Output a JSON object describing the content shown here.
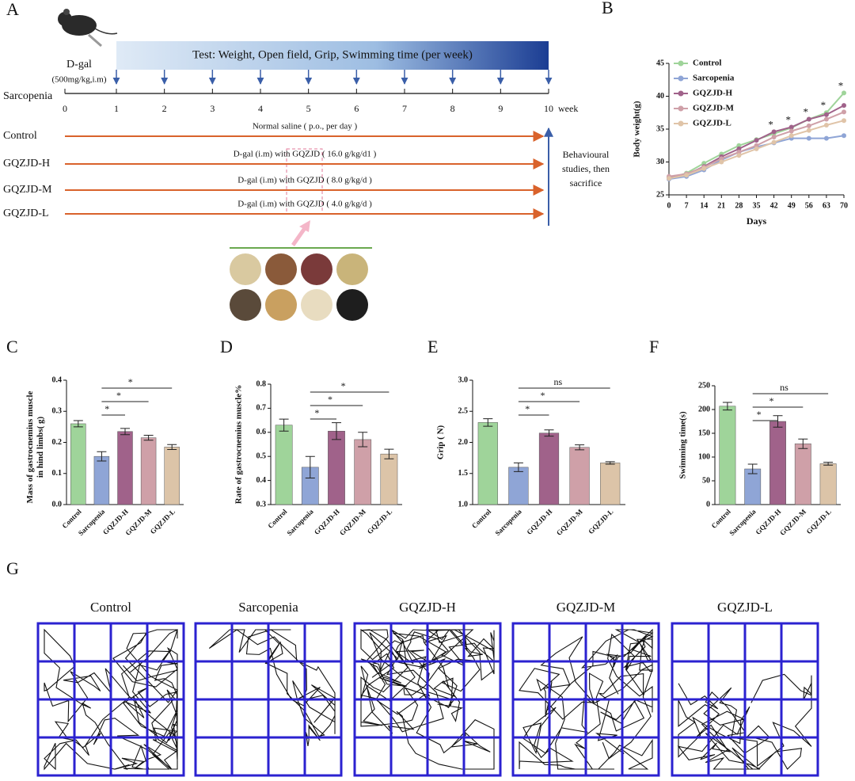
{
  "protocol": {
    "label": "A",
    "drug": "D-gal",
    "dose": "(500mg/kg,i.m)",
    "test_banner": "Test:  Weight, Open field, Grip, Swimming time (per week)",
    "timeline_label": "Sarcopenia",
    "weeks": [
      0,
      1,
      2,
      3,
      4,
      5,
      6,
      7,
      8,
      9,
      10
    ],
    "unit": "week",
    "groups": [
      {
        "name": "Control",
        "treatment": "Normal saline ( p.o., per day )"
      },
      {
        "name": "GQZJD-H",
        "treatment": "D-gal (i.m) with GQZJD ( 16.0 g/kg/d1 )"
      },
      {
        "name": "GQZJD-M",
        "treatment": "D-gal (i.m) with GQZJD ( 8.0 g/kg/d )"
      },
      {
        "name": "GQZJD-L",
        "treatment": "D-gal (i.m) with GQZJD ( 4.0 g/kg/d )"
      }
    ],
    "endpoint": [
      "Behavioural",
      "studies, then",
      "sacrifice"
    ]
  },
  "chart_data": [
    {
      "type": "line",
      "panel_label": "B",
      "x_label": "Days",
      "y_label": "Body weight(g)",
      "x": [
        0,
        7,
        14,
        21,
        28,
        35,
        42,
        49,
        56,
        63,
        70
      ],
      "xlim": [
        0,
        70
      ],
      "xticks": [
        0,
        7,
        14,
        21,
        28,
        35,
        42,
        49,
        56,
        63,
        70
      ],
      "ylim": [
        25,
        45
      ],
      "yticks": [
        25,
        30,
        35,
        40,
        45
      ],
      "legend": "top-left",
      "series": [
        {
          "name": "Control",
          "color": "#9fd49a",
          "values": [
            27.5,
            28.3,
            29.8,
            31.2,
            32.5,
            33.4,
            34.3,
            35.2,
            36.5,
            37.5,
            40.5
          ]
        },
        {
          "name": "Sarcopenia",
          "color": "#8fa5d6",
          "values": [
            27.4,
            27.8,
            28.8,
            30.3,
            31.5,
            32.3,
            32.9,
            33.6,
            33.6,
            33.6,
            34.0
          ]
        },
        {
          "name": "GQZJD-H",
          "color": "#a0628a",
          "values": [
            27.6,
            28.1,
            29.3,
            30.8,
            32.0,
            33.3,
            34.6,
            35.3,
            36.5,
            37.2,
            38.6
          ]
        },
        {
          "name": "GQZJD-M",
          "color": "#cfa0a8",
          "values": [
            27.8,
            28.2,
            29.2,
            30.5,
            31.5,
            32.5,
            33.8,
            34.7,
            35.5,
            36.5,
            37.6
          ]
        },
        {
          "name": "GQZJD-L",
          "color": "#e0c4a8",
          "values": [
            27.5,
            28.0,
            29.0,
            30.0,
            31.0,
            32.0,
            33.0,
            34.0,
            34.8,
            35.6,
            36.3
          ]
        }
      ],
      "annotations": [
        {
          "x": 42,
          "label": "*"
        },
        {
          "x": 49,
          "label": "*"
        },
        {
          "x": 56,
          "label": "*"
        },
        {
          "x": 63,
          "label": "*"
        },
        {
          "x": 70,
          "label": "*"
        }
      ]
    },
    {
      "type": "bar",
      "panel_label": "C",
      "y_label": "Mass of gastrocnemius muscle in hind limbs( g)",
      "categories": [
        "Control",
        "Sarcopenia",
        "GQZJD-H",
        "GQZJD-M",
        "GQZJD-L"
      ],
      "colors": [
        "#9fd49a",
        "#8fa5d6",
        "#a0628a",
        "#cfa0a8",
        "#dcc4a8"
      ],
      "values": [
        0.26,
        0.155,
        0.235,
        0.215,
        0.185
      ],
      "errors": [
        0.01,
        0.015,
        0.01,
        0.008,
        0.008
      ],
      "ylim": [
        0,
        0.4
      ],
      "yticks": [
        {
          "value": 0,
          "label": "0.0"
        },
        0.1,
        0.2,
        0.3,
        0.4
      ],
      "comparisons": [
        {
          "groups": [
            "Sarcopenia",
            "GQZJD-H"
          ],
          "label": "*"
        },
        {
          "groups": [
            "Sarcopenia",
            "GQZJD-M"
          ],
          "label": "*"
        },
        {
          "groups": [
            "Sarcopenia",
            "GQZJD-L"
          ],
          "label": "*"
        }
      ]
    },
    {
      "type": "bar",
      "panel_label": "D",
      "y_label": "Rate of gastrocnemius muscle%",
      "categories": [
        "Control",
        "Sarcopenia",
        "GQZJD-H",
        "GQZJD-M",
        "GQZJD-L"
      ],
      "colors": [
        "#9fd49a",
        "#8fa5d6",
        "#a0628a",
        "#cfa0a8",
        "#dcc4a8"
      ],
      "values": [
        0.63,
        0.455,
        0.605,
        0.57,
        0.51
      ],
      "errors": [
        0.025,
        0.045,
        0.035,
        0.03,
        0.02
      ],
      "ylim": [
        0.3,
        0.8
      ],
      "yticks": [
        0.3,
        0.4,
        0.5,
        0.6,
        0.7,
        0.8
      ],
      "comparisons": [
        {
          "groups": [
            "Sarcopenia",
            "GQZJD-H"
          ],
          "label": "*"
        },
        {
          "groups": [
            "Sarcopenia",
            "GQZJD-M"
          ],
          "label": "*"
        },
        {
          "groups": [
            "Sarcopenia",
            "GQZJD-L"
          ],
          "label": "*"
        }
      ]
    },
    {
      "type": "bar",
      "panel_label": "E",
      "y_label": "Grip ( N)",
      "categories": [
        "Control",
        "Sarcopenia",
        "GQZJD-H",
        "GQZJD-M",
        "GQZJD-L"
      ],
      "colors": [
        "#9fd49a",
        "#8fa5d6",
        "#a0628a",
        "#cfa0a8",
        "#dcc4a8"
      ],
      "values": [
        2.32,
        1.6,
        2.15,
        1.92,
        1.67
      ],
      "errors": [
        0.06,
        0.07,
        0.05,
        0.04,
        0.02
      ],
      "ylim": [
        1,
        3
      ],
      "yticks": [
        {
          "value": 1,
          "label": "1.0"
        },
        1.5,
        {
          "value": 2,
          "label": "2.0"
        },
        2.5,
        {
          "value": 3,
          "label": "3.0"
        }
      ],
      "comparisons": [
        {
          "groups": [
            "Sarcopenia",
            "GQZJD-H"
          ],
          "label": "*"
        },
        {
          "groups": [
            "Sarcopenia",
            "GQZJD-M"
          ],
          "label": "*"
        },
        {
          "groups": [
            "Sarcopenia",
            "GQZJD-L"
          ],
          "label": "ns"
        }
      ]
    },
    {
      "type": "bar",
      "panel_label": "F",
      "y_label": "Swimming time(s)",
      "categories": [
        "Control",
        "Sarcopenia",
        "GQZJD-H",
        "GQZJD-M",
        "GQZJD-L"
      ],
      "colors": [
        "#9fd49a",
        "#8fa5d6",
        "#a0628a",
        "#cfa0a8",
        "#dcc4a8"
      ],
      "values": [
        207,
        75,
        175,
        128,
        86
      ],
      "errors": [
        8,
        10,
        12,
        10,
        3
      ],
      "ylim": [
        0,
        250
      ],
      "yticks": [
        0,
        50,
        100,
        150,
        200,
        250
      ],
      "comparisons": [
        {
          "groups": [
            "Sarcopenia",
            "GQZJD-H"
          ],
          "label": "*"
        },
        {
          "groups": [
            "Sarcopenia",
            "GQZJD-M"
          ],
          "label": "*"
        },
        {
          "groups": [
            "Sarcopenia",
            "GQZJD-L"
          ],
          "label": "ns"
        }
      ]
    }
  ],
  "open_field": {
    "label": "G",
    "groups": [
      "Control",
      "Sarcopenia",
      "GQZJD-H",
      "GQZJD-M",
      "GQZJD-L"
    ]
  }
}
